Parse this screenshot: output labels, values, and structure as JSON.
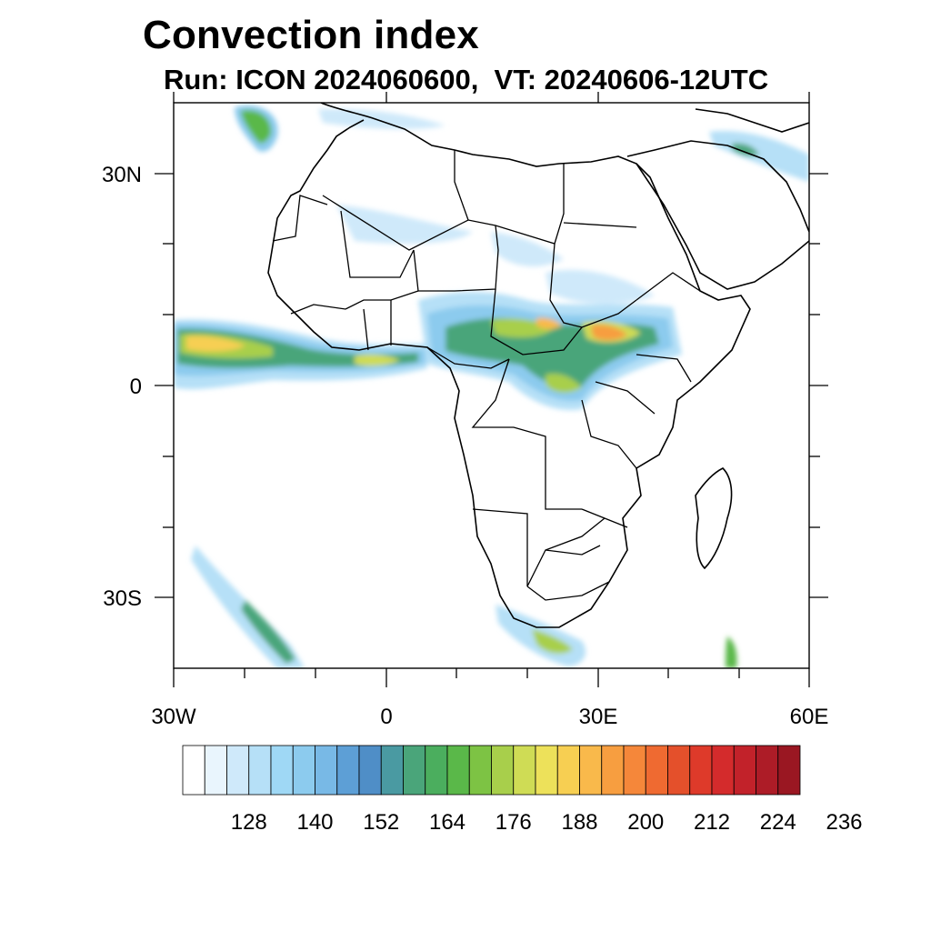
{
  "figure": {
    "title": "Convection index",
    "subtitle": "Run: ICON 2024060600,  VT: 20240606-12UTC"
  },
  "map": {
    "region": "Africa",
    "projection": "cylindrical equidistant",
    "lon_range": [
      -30,
      60
    ],
    "lat_range": [
      -40,
      40
    ],
    "lat_ticks": [
      {
        "value": 30,
        "label": "30N"
      },
      {
        "value": 0,
        "label": "0"
      },
      {
        "value": -30,
        "label": "30S"
      }
    ],
    "lon_ticks": [
      {
        "value": -30,
        "label": "30W"
      },
      {
        "value": 0,
        "label": "0"
      },
      {
        "value": 30,
        "label": "30E"
      },
      {
        "value": 60,
        "label": "60E"
      }
    ]
  },
  "colorbar": {
    "labels": [
      "128",
      "140",
      "152",
      "164",
      "176",
      "188",
      "200",
      "212",
      "224",
      "236"
    ],
    "colors": [
      "#ffffff",
      "#e9f5fd",
      "#cfe9fa",
      "#b6e0f7",
      "#9fd8f5",
      "#8ccbee",
      "#78b9e6",
      "#5d9fd6",
      "#4f8ec7",
      "#4a9aa2",
      "#4aa57a",
      "#4bae5e",
      "#5ab849",
      "#7dc344",
      "#a8cf4b",
      "#cfdc55",
      "#ede15a",
      "#f7cf52",
      "#f9b94b",
      "#f79e40",
      "#f5873a",
      "#ef6a31",
      "#e4502b",
      "#de3a2a",
      "#d42b2c",
      "#c2222a",
      "#ad1c27",
      "#9a1722"
    ]
  }
}
